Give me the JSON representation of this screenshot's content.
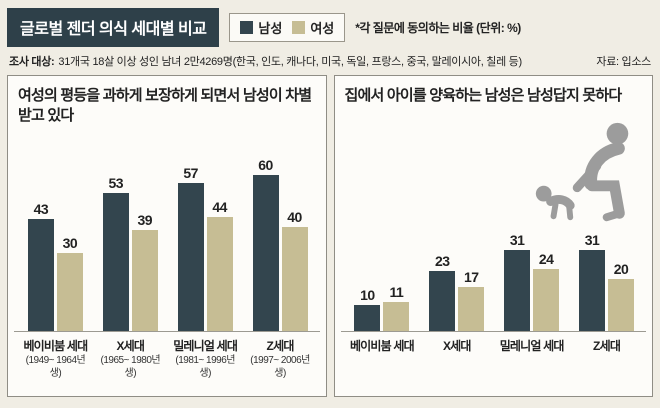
{
  "header": {
    "title": "글로벌 젠더 의식 세대별 비교",
    "note": "*각 질문에 동의하는 비율 (단위: %)",
    "legend": [
      {
        "label": "남성",
        "color": "#33454e"
      },
      {
        "label": "여성",
        "color": "#c6bd94"
      }
    ]
  },
  "meta": {
    "label": "조사 대상:",
    "text": "31개국 18살 이상 성인 남녀 2만4269명(한국, 인도, 캐나다, 미국, 독일, 프랑스, 중국, 말레이시아, 칠레 등)",
    "source": "자료: 입소스"
  },
  "chart_data": [
    {
      "type": "bar",
      "title": "여성의 평등을 과하게 보장하게 되면서 남성이 차별받고 있다",
      "categories": [
        "베이비붐 세대",
        "X세대",
        "밀레니얼 세대",
        "Z세대"
      ],
      "category_sub": [
        "(1949~ 1964년생)",
        "(1965~ 1980년생)",
        "(1981~ 1996년생)",
        "(1997~ 2006년생)"
      ],
      "series": [
        {
          "name": "남성",
          "values": [
            43,
            53,
            57,
            60
          ]
        },
        {
          "name": "여성",
          "values": [
            30,
            39,
            44,
            40
          ]
        }
      ],
      "unit": "%",
      "ylim": [
        0,
        70
      ],
      "legend_position": "top-shared",
      "grid": false
    },
    {
      "type": "bar",
      "title": "집에서 아이를 양육하는 남성은 남성답지 못하다",
      "categories": [
        "베이비붐 세대",
        "X세대",
        "밀레니얼 세대",
        "Z세대"
      ],
      "series": [
        {
          "name": "남성",
          "values": [
            10,
            23,
            31,
            31
          ]
        },
        {
          "name": "여성",
          "values": [
            11,
            17,
            24,
            20
          ]
        }
      ],
      "unit": "%",
      "ylim": [
        0,
        70
      ],
      "legend_position": "top-shared",
      "grid": false
    }
  ]
}
